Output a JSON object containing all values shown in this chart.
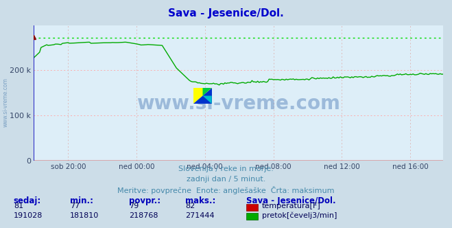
{
  "title": "Sava - Jesenice/Dol.",
  "title_color": "#0000cc",
  "bg_color": "#ccdde8",
  "plot_bg_color": "#ddeef8",
  "grid_color_h": "#ffaaaa",
  "grid_color_v": "#ddbbbb",
  "xlim": [
    0,
    287
  ],
  "ylim": [
    0,
    300000
  ],
  "yticks": [
    0,
    100000,
    200000
  ],
  "ytick_labels": [
    "0",
    "100 k",
    "200 k"
  ],
  "xtick_positions": [
    24,
    72,
    120,
    168,
    216,
    264
  ],
  "xtick_labels": [
    "sob 20:00",
    "ned 00:00",
    "ned 04:00",
    "ned 08:00",
    "ned 12:00",
    "ned 16:00"
  ],
  "temp_color": "#cc0000",
  "flow_color": "#00aa00",
  "flow_max_color": "#00dd00",
  "flow_max": 271444,
  "footer_line1": "Slovenija / reke in morje.",
  "footer_line2": "zadnji dan / 5 minut.",
  "footer_line3": "Meritve: povprečne  Enote: anglešaške  Črta: maksimum",
  "footer_color": "#4488aa",
  "table_headers": [
    "sedaj:",
    "min.:",
    "povpr.:",
    "maks.:"
  ],
  "table_temp": [
    81,
    77,
    79,
    82
  ],
  "table_flow": [
    191028,
    181810,
    218768,
    271444
  ],
  "legend_title": "Sava - Jesenice/Dol.",
  "legend_temp": "temperatura[F]",
  "legend_flow": "pretok[čevelj3/min]",
  "watermark": "www.si-vreme.com",
  "watermark_color": "#3366aa",
  "axis_left_color": "#0000bb",
  "axis_bottom_color": "#cc0000",
  "axis_right_color": "#cc0000"
}
